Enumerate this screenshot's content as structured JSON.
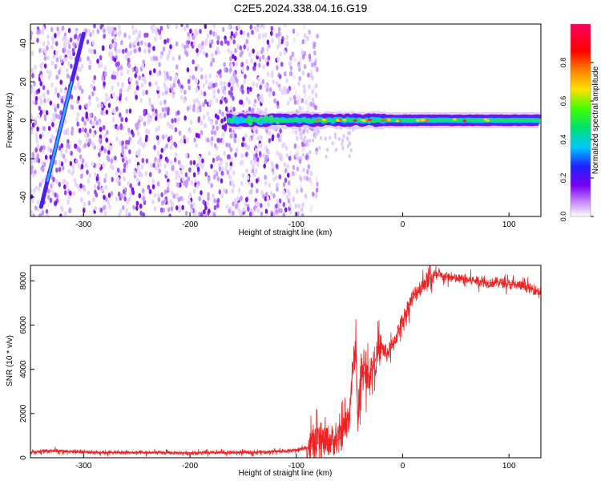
{
  "title": "C2E5.2024.338.04.16.G19",
  "chart_data": [
    {
      "type": "heatmap",
      "title": "C2E5.2024.338.04.16.G19",
      "xlabel": "Height of straight line (km)",
      "ylabel": "Frequency (Hz)",
      "xlim": [
        -350,
        130
      ],
      "ylim": [
        -50,
        50
      ],
      "xticks": [
        -300,
        -200,
        -100,
        0,
        100
      ],
      "yticks": [
        -40,
        -20,
        0,
        20,
        40
      ],
      "colorbar": {
        "label": "Normalized spectral amplitude",
        "range": [
          0,
          1
        ],
        "ticks": [
          "0.0",
          "0.2",
          "0.4",
          "0.6",
          "0.8"
        ],
        "colors": [
          "#ffffff",
          "#c080ff",
          "#7a00f0",
          "#2020ff",
          "#00c8ff",
          "#00e070",
          "#40ff00",
          "#ffe000",
          "#ff8000",
          "#ff0000",
          "#ff0060"
        ]
      },
      "noise_region_x": [
        -350,
        -105
      ],
      "doppler_streak": {
        "x": [
          -340,
          -300
        ],
        "y": [
          -45,
          45
        ]
      },
      "signal_band_y": 0,
      "signal_band_start_x": -165
    },
    {
      "type": "line",
      "xlabel": "Height of straight line (km)",
      "ylabel": "SNR (10 * v/v)",
      "xlim": [
        -350,
        130
      ],
      "ylim": [
        0,
        8700
      ],
      "xticks": [
        -300,
        -200,
        -100,
        0,
        100
      ],
      "yticks": [
        0,
        2000,
        4000,
        6000,
        8000
      ],
      "color": "#ee2222",
      "x": [
        -350,
        -330,
        -310,
        -290,
        -270,
        -250,
        -230,
        -210,
        -190,
        -170,
        -150,
        -130,
        -110,
        -100,
        -90,
        -80,
        -70,
        -60,
        -55,
        -50,
        -47,
        -44,
        -42,
        -40,
        -38,
        -35,
        -30,
        -25,
        -20,
        -15,
        -10,
        -5,
        0,
        5,
        10,
        15,
        20,
        25,
        30,
        40,
        50,
        60,
        70,
        80,
        90,
        100,
        110,
        120,
        130
      ],
      "y": [
        250,
        330,
        280,
        250,
        240,
        230,
        230,
        220,
        220,
        230,
        240,
        260,
        300,
        350,
        450,
        650,
        800,
        800,
        1300,
        2000,
        4000,
        5100,
        1500,
        2800,
        4200,
        3600,
        3900,
        4500,
        5000,
        4700,
        5000,
        5600,
        6200,
        6800,
        7300,
        7600,
        7900,
        8100,
        8250,
        8200,
        8100,
        8050,
        8000,
        7900,
        7950,
        7850,
        7800,
        7650,
        7500
      ]
    }
  ]
}
